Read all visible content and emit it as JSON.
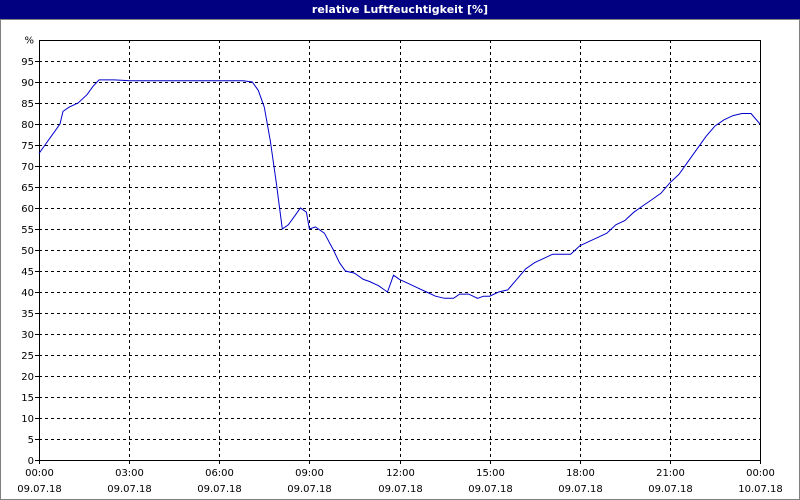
{
  "window": {
    "title": "relative Luftfeuchtigkeit [%]"
  },
  "chart_data": {
    "type": "line",
    "title": "relative Luftfeuchtigkeit [%]",
    "ylabel": "%",
    "xlabel": "",
    "ylim": [
      0,
      100
    ],
    "xlim": [
      0,
      24
    ],
    "grid": true,
    "line_color": "#0000cc",
    "y_ticks": [
      0,
      5,
      10,
      15,
      20,
      25,
      30,
      35,
      40,
      45,
      50,
      55,
      60,
      65,
      70,
      75,
      80,
      85,
      90,
      95
    ],
    "x_ticks": [
      {
        "time": "00:00",
        "date": "09.07.18"
      },
      {
        "time": "03:00",
        "date": "09.07.18"
      },
      {
        "time": "06:00",
        "date": "09.07.18"
      },
      {
        "time": "09:00",
        "date": "09.07.18"
      },
      {
        "time": "12:00",
        "date": "09.07.18"
      },
      {
        "time": "15:00",
        "date": "09.07.18"
      },
      {
        "time": "18:00",
        "date": "09.07.18"
      },
      {
        "time": "21:00",
        "date": "09.07.18"
      },
      {
        "time": "00:00",
        "date": "10.07.18"
      }
    ],
    "series": [
      {
        "x": [
          0,
          0.2,
          0.4,
          0.5,
          0.7,
          0.8,
          1.0,
          1.3,
          1.6,
          1.8,
          2.0,
          2.3,
          2.5,
          3.0,
          4.0,
          5.0,
          6.0,
          6.8,
          7.1,
          7.3,
          7.5,
          7.7,
          7.9,
          8.1,
          8.3,
          8.5,
          8.7,
          8.9,
          9.0,
          9.2,
          9.5,
          9.8,
          10.0,
          10.2,
          10.5,
          10.8,
          11.0,
          11.3,
          11.6,
          11.8,
          12.0,
          12.3,
          12.6,
          12.9,
          13.2,
          13.5,
          13.8,
          14.0,
          14.3,
          14.6,
          14.8,
          15.0,
          15.3,
          15.6,
          15.9,
          16.2,
          16.5,
          16.8,
          17.1,
          17.4,
          17.7,
          18.0,
          18.3,
          18.6,
          18.9,
          19.2,
          19.5,
          19.8,
          20.1,
          20.4,
          20.7,
          21.0,
          21.3,
          21.6,
          21.9,
          22.2,
          22.5,
          22.8,
          23.1,
          23.4,
          23.7,
          24.0
        ],
        "y": [
          73,
          75,
          77,
          78,
          80,
          83,
          84,
          85,
          87,
          89,
          90.5,
          90.5,
          90.5,
          90.3,
          90.3,
          90.3,
          90.3,
          90.3,
          90,
          88,
          84,
          76,
          66,
          55,
          56,
          58,
          60,
          59,
          55,
          55.5,
          54,
          50,
          47,
          45,
          44.5,
          43,
          42.5,
          41.5,
          40,
          44,
          43,
          42,
          41,
          40,
          39,
          38.5,
          38.5,
          39.5,
          39.5,
          38.5,
          39,
          39,
          40,
          40.5,
          43,
          45.5,
          47,
          48,
          49,
          49,
          49,
          51,
          52,
          53,
          54,
          56,
          57,
          59,
          60.5,
          62,
          63.5,
          66,
          68,
          71,
          74,
          77,
          79.5,
          81,
          82,
          82.5,
          82.5,
          80
        ]
      }
    ]
  }
}
